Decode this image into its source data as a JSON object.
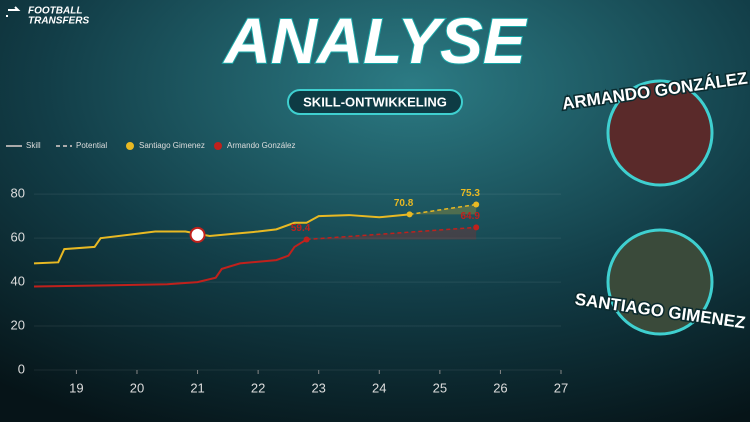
{
  "header": {
    "brand": [
      "FOOTBALL",
      "TRANSFERS"
    ],
    "title": "ANALYSE",
    "subtitle": "SKILL-ONTWIKKELING"
  },
  "players": [
    "ARMANDO GONZÁLEZ",
    "SANTIAGO GIMENEZ"
  ],
  "chart_data": {
    "type": "line",
    "legend_styles": [
      "Skill",
      "Potential"
    ],
    "series": [
      {
        "name": "Santiago Gimenez",
        "color": "#e8b923",
        "x": [
          18.3,
          18.7,
          18.8,
          19.3,
          19.4,
          20,
          20.3,
          20.8,
          21,
          21.2,
          21.6,
          22,
          22.3,
          22.6,
          22.8,
          23,
          23.5,
          24,
          24.5
        ],
        "values": [
          48.5,
          49,
          55,
          56,
          60,
          62,
          63,
          63,
          62,
          61,
          62,
          63,
          64,
          67,
          67,
          70,
          70.5,
          69.5,
          70.8
        ],
        "potential_x": [
          24.5,
          25.6
        ],
        "potential_values": [
          70.8,
          75.3
        ]
      },
      {
        "name": "Armando González",
        "color": "#c0211c",
        "x": [
          18.3,
          19.5,
          20.5,
          21,
          21.3,
          21.4,
          21.7,
          22.3,
          22.5,
          22.6,
          22.8
        ],
        "values": [
          38,
          38.5,
          39,
          40,
          42,
          46,
          48.5,
          50,
          52,
          56,
          59.4
        ],
        "potential_x": [
          22.8,
          25.6
        ],
        "potential_values": [
          59.4,
          64.9
        ]
      }
    ],
    "xlim": [
      18.3,
      27
    ],
    "xticks": [
      19,
      20,
      21,
      22,
      23,
      24,
      25,
      26,
      27
    ],
    "ylim": [
      0,
      86
    ],
    "yticks": [
      0,
      20,
      40,
      60,
      80
    ],
    "grid": true
  }
}
